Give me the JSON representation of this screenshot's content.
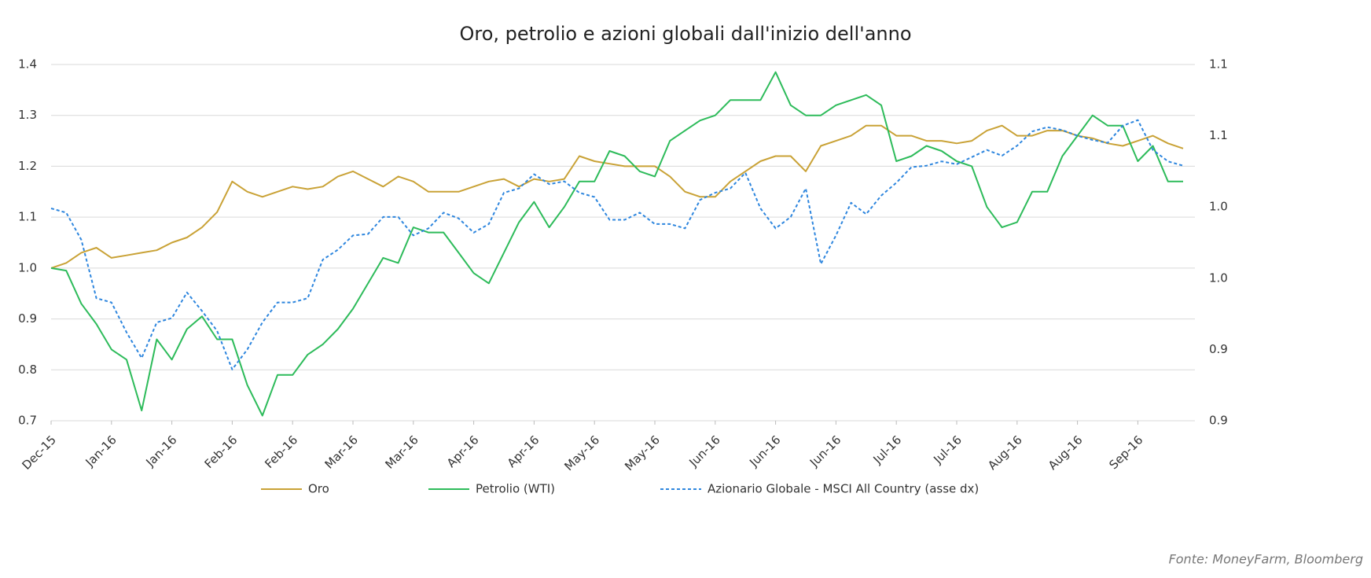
{
  "chart_data": {
    "type": "line",
    "title": "Oro, petrolio e azioni globali dall'inizio dell'anno",
    "source": "Fonte: MoneyFarm, Bloomberg",
    "categories": [
      "Dec-15",
      null,
      null,
      null,
      "Jan-16",
      null,
      null,
      null,
      "Jan-16",
      null,
      null,
      null,
      "Feb-16",
      null,
      null,
      null,
      "Feb-16",
      null,
      null,
      null,
      "Mar-16",
      null,
      null,
      null,
      "Mar-16",
      null,
      null,
      null,
      "Apr-16",
      null,
      null,
      null,
      "Apr-16",
      null,
      null,
      null,
      "May-16",
      null,
      null,
      null,
      "May-16",
      null,
      null,
      null,
      "Jun-16",
      null,
      null,
      null,
      "Jun-16",
      null,
      null,
      null,
      "Jun-16",
      null,
      null,
      null,
      "Jul-16",
      null,
      null,
      null,
      "Jul-16",
      null,
      null,
      null,
      "Aug-16",
      null,
      null,
      null,
      "Aug-16",
      null,
      null,
      null,
      "Sep-16",
      null,
      null,
      null
    ],
    "ylim": [
      0.7,
      1.4
    ],
    "yticks": [
      0.7,
      0.8,
      0.9,
      {
        "value": 1,
        "label": "1.0"
      },
      1.1,
      1.2,
      1.3,
      1.4
    ],
    "y2lim": [
      0.875,
      1.125
    ],
    "y2ticks": [
      {
        "value": 0.875,
        "label": "0.9"
      },
      {
        "value": 0.925,
        "label": "0.9"
      },
      {
        "value": 0.975,
        "label": "1.0"
      },
      {
        "value": 1.025,
        "label": "1.0"
      },
      {
        "value": 1.075,
        "label": "1.1"
      },
      {
        "value": 1.125,
        "label": "1.1"
      }
    ],
    "grid": true,
    "legend": "bottom",
    "series": [
      {
        "name": "Oro",
        "color": "#c9a236",
        "dash": "solid",
        "values": [
          1.0,
          1.01,
          1.03,
          1.04,
          1.02,
          1.025,
          1.03,
          1.035,
          1.05,
          1.06,
          1.08,
          1.11,
          1.17,
          1.15,
          1.14,
          1.15,
          1.16,
          1.155,
          1.16,
          1.18,
          1.19,
          1.175,
          1.16,
          1.18,
          1.17,
          1.15,
          1.15,
          1.15,
          1.16,
          1.17,
          1.175,
          1.16,
          1.175,
          1.17,
          1.175,
          1.22,
          1.21,
          1.205,
          1.2,
          1.2,
          1.2,
          1.18,
          1.15,
          1.14,
          1.14,
          1.17,
          1.19,
          1.21,
          1.22,
          1.22,
          1.19,
          1.24,
          1.25,
          1.26,
          1.28,
          1.28,
          1.26,
          1.26,
          1.25,
          1.25,
          1.245,
          1.25,
          1.27,
          1.28,
          1.26,
          1.26,
          1.27,
          1.27,
          1.26,
          1.255,
          1.245,
          1.24,
          1.25,
          1.26,
          1.245,
          1.235
        ]
      },
      {
        "name": "Petrolio (WTI)",
        "color": "#2dbb5a",
        "dash": "solid",
        "values": [
          1.0,
          0.995,
          0.93,
          0.89,
          0.84,
          0.82,
          0.72,
          0.86,
          0.82,
          0.88,
          0.905,
          0.86,
          0.86,
          0.77,
          0.71,
          0.79,
          0.79,
          0.83,
          0.85,
          0.88,
          0.92,
          0.97,
          1.02,
          1.01,
          1.08,
          1.07,
          1.07,
          1.03,
          0.99,
          0.97,
          1.03,
          1.09,
          1.13,
          1.08,
          1.12,
          1.17,
          1.17,
          1.23,
          1.22,
          1.19,
          1.18,
          1.25,
          1.27,
          1.29,
          1.3,
          1.33,
          1.33,
          1.33,
          1.385,
          1.32,
          1.3,
          1.3,
          1.32,
          1.33,
          1.34,
          1.32,
          1.21,
          1.22,
          1.24,
          1.23,
          1.21,
          1.2,
          1.12,
          1.08,
          1.09,
          1.15,
          1.15,
          1.22,
          1.26,
          1.3,
          1.28,
          1.28,
          1.21,
          1.24,
          1.17,
          1.17
        ]
      },
      {
        "name": "Azionario Globale - MSCI All Country (asse dx)",
        "color": "#2e86de",
        "dash": "dashed",
        "axis": "y2",
        "values": [
          1.024,
          1.021,
          1.002,
          0.961,
          0.958,
          0.937,
          0.919,
          0.944,
          0.947,
          0.965,
          0.952,
          0.938,
          0.911,
          0.925,
          0.944,
          0.958,
          0.958,
          0.961,
          0.988,
          0.995,
          1.005,
          1.006,
          1.018,
          1.018,
          1.005,
          1.01,
          1.021,
          1.017,
          1.007,
          1.013,
          1.035,
          1.038,
          1.048,
          1.041,
          1.043,
          1.035,
          1.032,
          1.016,
          1.016,
          1.021,
          1.013,
          1.013,
          1.01,
          1.03,
          1.035,
          1.038,
          1.049,
          1.024,
          1.01,
          1.018,
          1.038,
          0.985,
          1.005,
          1.028,
          1.02,
          1.033,
          1.042,
          1.053,
          1.054,
          1.057,
          1.055,
          1.06,
          1.065,
          1.061,
          1.068,
          1.078,
          1.081,
          1.079,
          1.075,
          1.072,
          1.07,
          1.082,
          1.086,
          1.065,
          1.057,
          1.054
        ]
      }
    ]
  }
}
